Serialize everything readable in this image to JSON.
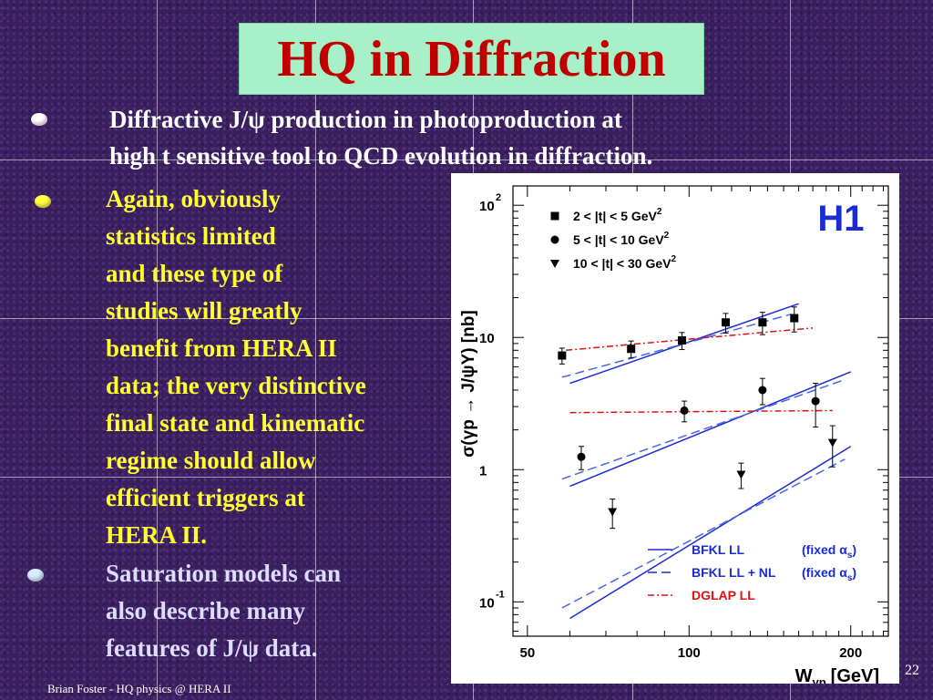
{
  "slide": {
    "title": "HQ in Diffraction",
    "bullet1_line1": "Diffractive J/ψ production in photoproduction at",
    "bullet1_line2": "high t sensitive tool to QCD evolution in diffraction.",
    "bullet2_lines": [
      "Again, obviously",
      "statistics limited",
      "and these type of",
      "studies will greatly",
      "benefit from HERA II",
      "data; the very distinctive",
      "final state and kinematic",
      "regime should allow",
      "efficient triggers at",
      "HERA II."
    ],
    "bullet3_lines": [
      "Saturation models can",
      "also describe many",
      "features of J/ψ data."
    ],
    "footer": "Brian Foster - HQ physics @ HERA II",
    "page_number": "22"
  },
  "chart_data": {
    "type": "scatter",
    "logo": "H1",
    "ylabel": "σ(γp → J/ψY) [nb]",
    "xlabel": "W",
    "xlabel_sub": "γp",
    "xlabel_unit": "[GeV]",
    "x_log": true,
    "y_log": true,
    "xlim": [
      47,
      235
    ],
    "ylim": [
      0.055,
      140
    ],
    "y_ticks": [
      {
        "value": 100,
        "base": "10",
        "exp": "2"
      },
      {
        "value": 10,
        "base": "10",
        "exp": ""
      },
      {
        "value": 1,
        "base": "1",
        "exp": ""
      },
      {
        "value": 0.1,
        "base": "10",
        "exp": "-1"
      }
    ],
    "x_ticks": [
      {
        "value": 50,
        "label": "50"
      },
      {
        "value": 100,
        "label": "100"
      },
      {
        "value": 200,
        "label": "200"
      }
    ],
    "series": [
      {
        "name": "2 < |t| < 5 GeV",
        "sup": "2",
        "marker": "square",
        "x": [
          58,
          78,
          97,
          117,
          137,
          157
        ],
        "y": [
          7.3,
          8.2,
          9.5,
          13.0,
          13.0,
          14.0
        ],
        "err": [
          1.0,
          1.2,
          1.4,
          2.2,
          2.5,
          3.0
        ]
      },
      {
        "name": "5 < |t| < 10 GeV",
        "sup": "2",
        "marker": "circle",
        "x": [
          63,
          98,
          137,
          172
        ],
        "y": [
          1.25,
          2.8,
          4.0,
          3.3
        ],
        "err": [
          0.25,
          0.5,
          0.9,
          1.2
        ]
      },
      {
        "name": "10 < |t| < 30 GeV",
        "sup": "2",
        "marker": "triangle",
        "x": [
          72,
          125,
          185
        ],
        "y": [
          0.48,
          0.92,
          1.6
        ],
        "err": [
          0.12,
          0.2,
          0.55
        ]
      }
    ],
    "curves": [
      {
        "name": "BFKL LL",
        "style": "solid",
        "color": "#1a2bd6",
        "lines": [
          [
            [
              60,
              4.5
            ],
            [
              160,
              18
            ]
          ],
          [
            [
              60,
              0.75
            ],
            [
              200,
              5.5
            ]
          ],
          [
            [
              60,
              0.075
            ],
            [
              200,
              1.5
            ]
          ]
        ]
      },
      {
        "name": "BFKL LL + NL",
        "style": "dashed",
        "color": "#4a66e6",
        "lines": [
          [
            [
              58,
              5.0
            ],
            [
              155,
              15
            ]
          ],
          [
            [
              58,
              0.85
            ],
            [
              195,
              4.8
            ]
          ],
          [
            [
              58,
              0.09
            ],
            [
              195,
              1.2
            ]
          ]
        ]
      },
      {
        "name": "DGLAP LL",
        "style": "dashdot",
        "color": "#e01010",
        "lines": [
          [
            [
              59,
              8.0
            ],
            [
              170,
              11.8
            ]
          ],
          [
            [
              60,
              2.7
            ],
            [
              185,
              2.8
            ]
          ]
        ]
      }
    ],
    "legend": [
      {
        "label": "BFKL LL",
        "fixed": "(fixed α",
        "sub": "s",
        "close": ")",
        "style": "solid",
        "color": "#1a2bd6"
      },
      {
        "label": "BFKL LL + NL",
        "fixed": "(fixed α",
        "sub": "s",
        "close": ")",
        "style": "dashed",
        "color": "#1a2bd6"
      },
      {
        "label": "DGLAP LL",
        "fixed": "",
        "sub": "",
        "close": "",
        "style": "dashdot",
        "color": "#e01010"
      }
    ]
  }
}
